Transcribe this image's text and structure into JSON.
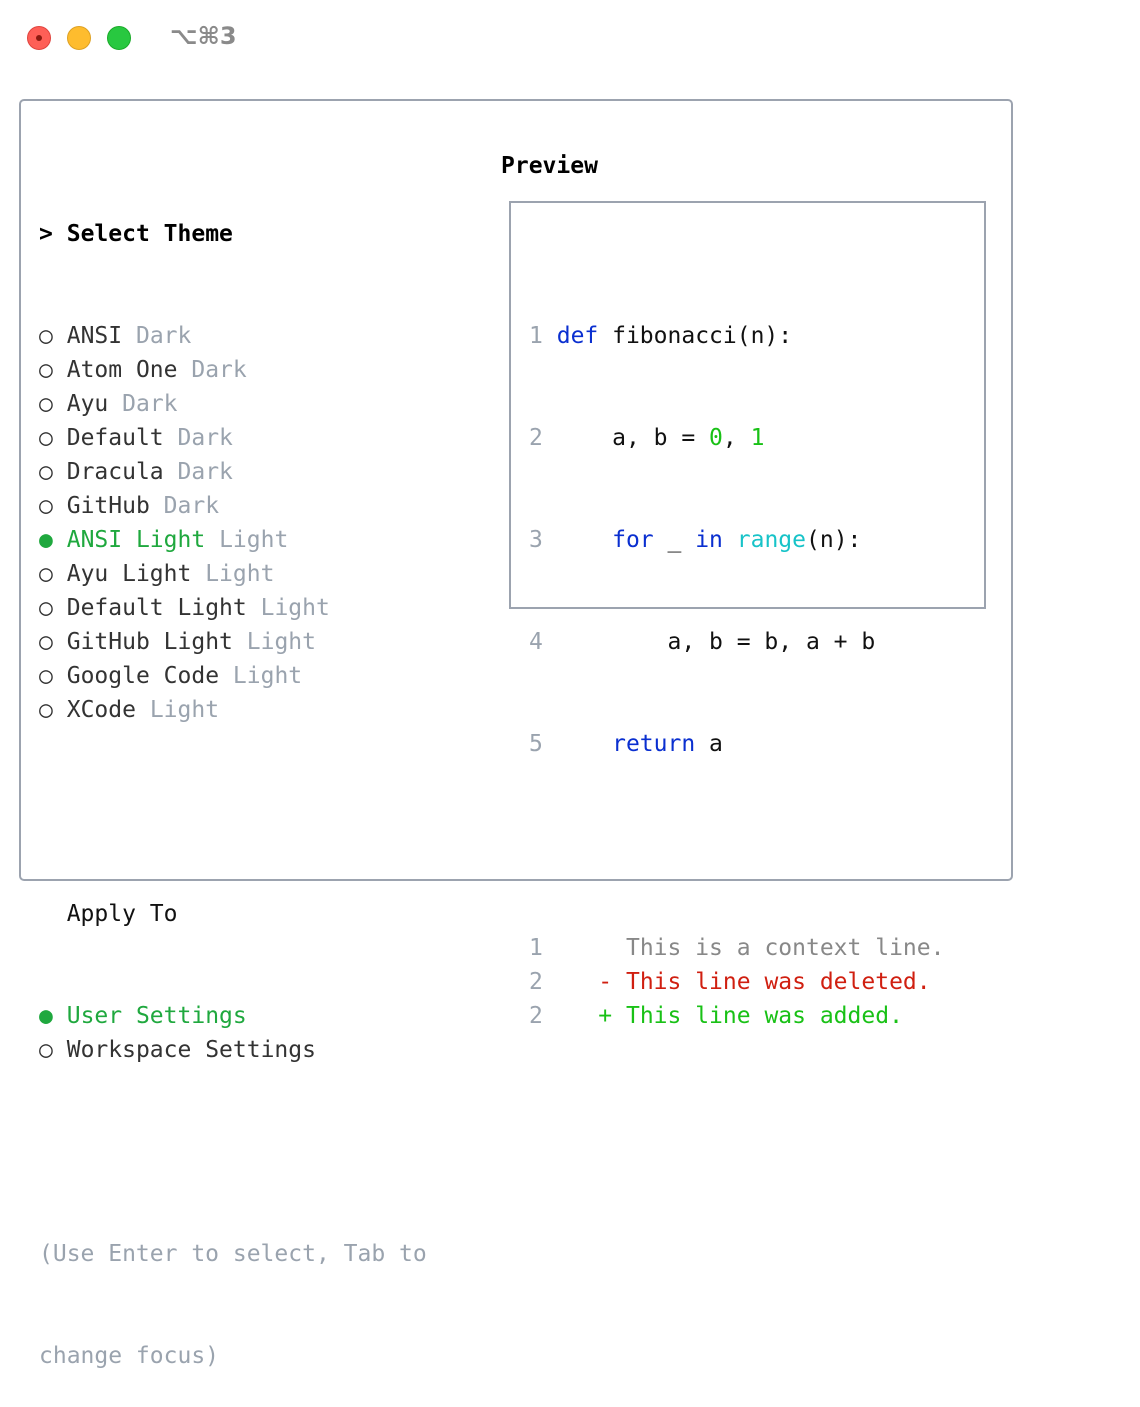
{
  "window": {
    "shortcut": "⌥⌘3"
  },
  "theme_section": {
    "title": "Select Theme",
    "cursor": ">",
    "items": [
      {
        "name": "ANSI",
        "type": "Dark",
        "selected": false
      },
      {
        "name": "Atom One",
        "type": "Dark",
        "selected": false
      },
      {
        "name": "Ayu",
        "type": "Dark",
        "selected": false
      },
      {
        "name": "Default",
        "type": "Dark",
        "selected": false
      },
      {
        "name": "Dracula",
        "type": "Dark",
        "selected": false
      },
      {
        "name": "GitHub",
        "type": "Dark",
        "selected": false
      },
      {
        "name": "ANSI Light",
        "type": "Light",
        "selected": true
      },
      {
        "name": "Ayu Light",
        "type": "Light",
        "selected": false
      },
      {
        "name": "Default Light",
        "type": "Light",
        "selected": false
      },
      {
        "name": "GitHub Light",
        "type": "Light",
        "selected": false
      },
      {
        "name": "Google Code",
        "type": "Light",
        "selected": false
      },
      {
        "name": "XCode",
        "type": "Light",
        "selected": false
      }
    ]
  },
  "apply_section": {
    "title": "Apply To",
    "items": [
      {
        "label": "User Settings",
        "selected": true
      },
      {
        "label": "Workspace Settings",
        "selected": false
      }
    ]
  },
  "hint": {
    "line1": "(Use Enter to select, Tab to",
    "line2": "change focus)"
  },
  "preview": {
    "title": "Preview",
    "code": {
      "l1": {
        "n": "1",
        "kw": "def",
        "rest": " fibonacci(n):"
      },
      "l2": {
        "n": "2",
        "pre": "    a, b = ",
        "n0": "0",
        "comma": ", ",
        "n1": "1"
      },
      "l3": {
        "n": "3",
        "for": "for",
        "us": " _ ",
        "in": "in",
        "range": "range",
        "rest": "(n):"
      },
      "l4": {
        "n": "4",
        "text": "        a, b = b, a + b"
      },
      "l5": {
        "n": "5",
        "kw": "return",
        "rest": " a"
      }
    },
    "diff": [
      {
        "n": "1",
        "marker": " ",
        "text": "This is a context line."
      },
      {
        "n": "2",
        "marker": "-",
        "text": "This line was deleted."
      },
      {
        "n": "2",
        "marker": "+",
        "text": "This line was added."
      }
    ]
  },
  "colors": {
    "selected": "#1fa83e",
    "keyword": "#0a2fd0",
    "number": "#19c116",
    "builtin": "#17c3c8",
    "deleted": "#d01f10",
    "added": "#19c116"
  }
}
